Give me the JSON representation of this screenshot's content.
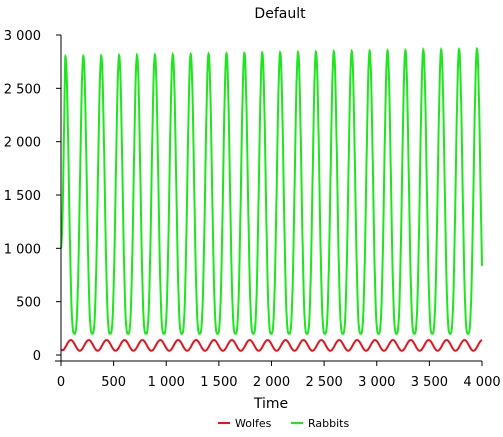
{
  "chart_data": {
    "type": "line",
    "title": "Default",
    "xlabel": "Time",
    "ylabel": "",
    "xlim": [
      0,
      4000
    ],
    "ylim": [
      0,
      3000
    ],
    "x_ticks": [
      0,
      500,
      1000,
      1500,
      2000,
      2500,
      3000,
      3500,
      4000
    ],
    "x_tick_labels": [
      "0",
      "500",
      "1 000",
      "1 500",
      "2 000",
      "2 500",
      "3 000",
      "3 500",
      "4 000"
    ],
    "y_ticks": [
      0,
      500,
      1000,
      1500,
      2000,
      2500,
      3000
    ],
    "y_tick_labels": [
      "0",
      "500",
      "1 000",
      "1 500",
      "2 000",
      "2 500",
      "3 000"
    ],
    "grid": false,
    "legend_position": "bottom",
    "series": [
      {
        "name": "Wolfes",
        "color": "#e8141b",
        "description_of_shape": "oscillation",
        "start": 50,
        "min": 40,
        "max": 140,
        "period": 170,
        "peak_phase": 0.55
      },
      {
        "name": "Rabbits",
        "color": "#1de61d",
        "start": 1000,
        "min": 200,
        "max_start": 2800,
        "max_end": 2870,
        "period": 170,
        "peak_phase": 0.25
      }
    ]
  }
}
